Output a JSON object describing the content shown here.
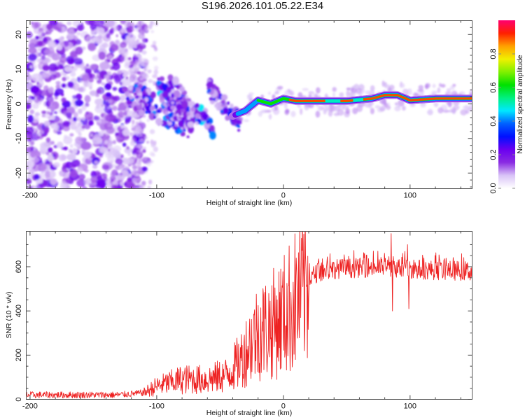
{
  "title": "S196.2026.101.05.22.E34",
  "chart_data": [
    {
      "type": "heatmap",
      "name": "spectrogram",
      "xlabel": "Height of straight line (km)",
      "ylabel": "Frequency (Hz)",
      "xlim": [
        -203,
        149
      ],
      "ylim": [
        -24.5,
        24
      ],
      "xticks": [
        -200,
        -100,
        0,
        100
      ],
      "xtick_labels": [
        "-200",
        "-100",
        "0",
        "100"
      ],
      "yticks": [
        -20,
        -10,
        0,
        10,
        20
      ],
      "ytick_labels": [
        "-20",
        "-10",
        "0",
        "10",
        "20"
      ],
      "colorbar": {
        "label": "Normalized spectral amplitude",
        "range": [
          0,
          1
        ],
        "ticks": [
          0.0,
          0.2,
          0.4,
          0.6,
          0.8
        ],
        "tick_labels": [
          "0.0",
          "0.2",
          "0.4",
          "0.6",
          "0.8"
        ],
        "colors": [
          "#ffffff",
          "#d9c3f7",
          "#8a2be2",
          "#6a00f0",
          "#0010ff",
          "#0060ff",
          "#00e8ff",
          "#00f080",
          "#00e000",
          "#80f000",
          "#f0f000",
          "#ffa000",
          "#ff2000",
          "#ff0070"
        ]
      },
      "ridge": {
        "description_points_km_hz": [
          [
            -120,
            4
          ],
          [
            -100,
            3
          ],
          [
            -80,
            3.5
          ],
          [
            -60,
            -1
          ],
          [
            -40,
            -3.5
          ],
          [
            -30,
            -2
          ],
          [
            -20,
            1
          ],
          [
            -10,
            0
          ],
          [
            0,
            1.5
          ],
          [
            10,
            0.8
          ],
          [
            50,
            0.8
          ],
          [
            70,
            1.5
          ],
          [
            80,
            2.5
          ],
          [
            90,
            2.5
          ],
          [
            100,
            1
          ],
          [
            120,
            1.5
          ],
          [
            149,
            1.5
          ]
        ]
      }
    },
    {
      "type": "line",
      "name": "snr",
      "xlabel": "Height of straight line (km)",
      "ylabel": "SNR (10 * v/v)",
      "xlim": [
        -203,
        149
      ],
      "ylim": [
        0,
        760
      ],
      "xticks": [
        -200,
        -100,
        0,
        100
      ],
      "xtick_labels": [
        "-200",
        "-100",
        "0",
        "100"
      ],
      "yticks": [
        0,
        200,
        400,
        600
      ],
      "ytick_labels": [
        "0",
        "200",
        "400",
        "600"
      ],
      "color": "#ee2222",
      "trend_points": [
        [
          -203,
          20
        ],
        [
          -130,
          20
        ],
        [
          -110,
          30
        ],
        [
          -100,
          60
        ],
        [
          -80,
          90
        ],
        [
          -60,
          90
        ],
        [
          -45,
          110
        ],
        [
          -35,
          170
        ],
        [
          -20,
          310
        ],
        [
          -10,
          330
        ],
        [
          0,
          380
        ],
        [
          10,
          450
        ],
        [
          20,
          530
        ],
        [
          25,
          570
        ],
        [
          40,
          590
        ],
        [
          60,
          595
        ],
        [
          80,
          600
        ],
        [
          100,
          590
        ],
        [
          120,
          585
        ],
        [
          149,
          580
        ]
      ],
      "spikes": [
        [
          85,
          750
        ],
        [
          86,
          400
        ],
        [
          98,
          700
        ],
        [
          99,
          410
        ]
      ]
    }
  ]
}
